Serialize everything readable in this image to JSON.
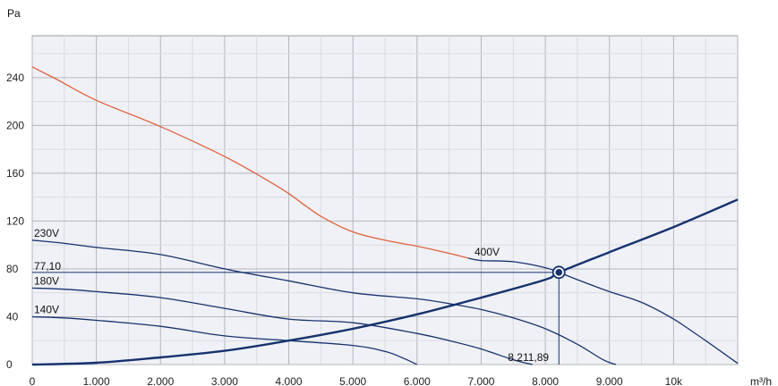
{
  "chart_data": {
    "type": "line",
    "xlabel": "m³/h",
    "ylabel": "Pa",
    "xlim": [
      0,
      11000
    ],
    "ylim": [
      0,
      275
    ],
    "x_ticks": [
      0,
      1000,
      2000,
      3000,
      4000,
      5000,
      6000,
      7000,
      8000,
      9000,
      10000
    ],
    "x_tick_labels": [
      "0",
      "1.000",
      "2.000",
      "3.000",
      "4.000",
      "5.000",
      "6.000",
      "7.000",
      "8.000",
      "9.000",
      "10k"
    ],
    "y_ticks": [
      0,
      40,
      80,
      120,
      160,
      200,
      240
    ],
    "y_tick_labels": [
      "0",
      "40",
      "80",
      "120",
      "160",
      "200",
      "240"
    ],
    "grid": true,
    "colors": {
      "fan_curves": "#16326e",
      "curve_400v": "#e0623f",
      "system_curve": "#16326e",
      "plot_bg": "#eff1f6",
      "grid": "#b4b6bb"
    },
    "series": [
      {
        "name": "400V",
        "color": "#e0623f",
        "x": [
          0,
          400,
          1000,
          2000,
          3000,
          3700,
          4000,
          4500,
          5000,
          5500,
          6000,
          6500,
          6800
        ],
        "y": [
          249,
          238,
          221,
          199,
          174,
          153,
          143,
          124,
          111,
          104,
          99,
          93,
          89
        ]
      },
      {
        "name": "400V",
        "color": "#16326e",
        "x": [
          6800,
          7000,
          7500,
          8000,
          8211.89,
          8500,
          9000,
          9500,
          10000,
          10500,
          11000
        ],
        "y": [
          89,
          87,
          86,
          81,
          77.1,
          71,
          61,
          52,
          38,
          20,
          1
        ]
      },
      {
        "name": "230V",
        "color": "#16326e",
        "x": [
          0,
          400,
          1000,
          2000,
          3000,
          4000,
          5000,
          6000,
          6500,
          7000,
          7500,
          8000,
          8500,
          8900,
          9100
        ],
        "y": [
          104,
          102,
          98,
          92,
          80,
          70,
          60,
          55,
          51,
          46,
          39,
          30,
          17,
          4,
          0
        ]
      },
      {
        "name": "180V",
        "color": "#16326e",
        "x": [
          0,
          500,
          1000,
          2000,
          3000,
          4000,
          5000,
          6000,
          6500,
          7000,
          7500,
          7800
        ],
        "y": [
          64,
          63,
          61,
          56,
          47,
          38,
          35,
          26,
          20,
          13,
          4,
          0
        ]
      },
      {
        "name": "140V",
        "color": "#16326e",
        "x": [
          0,
          500,
          1000,
          2000,
          3000,
          4000,
          5000,
          5500,
          5800,
          6000
        ],
        "y": [
          40,
          39,
          37,
          32,
          24,
          20,
          16,
          11,
          5,
          0
        ]
      },
      {
        "name": "",
        "color": "#16326e",
        "x": [
          0,
          1000,
          2000,
          3000,
          4000,
          5000,
          6000,
          7000,
          8000,
          8211.89,
          9000,
          10000,
          11000
        ],
        "y": [
          0,
          1.5,
          6,
          11.5,
          20,
          30,
          42,
          56,
          71,
          77.1,
          94,
          115,
          138
        ]
      }
    ],
    "curve_labels": [
      {
        "text": "230V"
      },
      {
        "text": "180V"
      },
      {
        "text": "140V"
      },
      {
        "text": "400V"
      }
    ],
    "operating_point": {
      "x": 8211.89,
      "y": 77.1,
      "x_label": "8.211,89",
      "y_label": "77,10"
    }
  }
}
